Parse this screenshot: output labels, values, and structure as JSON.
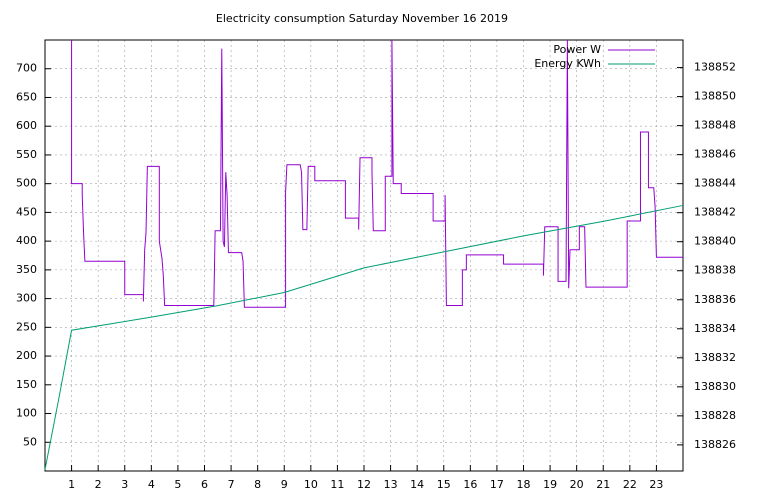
{
  "chart_data": {
    "type": "line",
    "title": "Electricity consumption Saturday November 16 2019",
    "xlim": [
      0,
      24
    ],
    "xticks": [
      1,
      2,
      3,
      4,
      5,
      6,
      7,
      8,
      9,
      10,
      11,
      12,
      13,
      14,
      15,
      16,
      17,
      18,
      19,
      20,
      21,
      22,
      23
    ],
    "ylim": [
      0,
      750
    ],
    "yticks": [
      50,
      100,
      150,
      200,
      250,
      300,
      350,
      400,
      450,
      500,
      550,
      600,
      650,
      700
    ],
    "y2lim": [
      138824.2,
      138853.9
    ],
    "y2ticks": [
      138826,
      138828,
      138830,
      138832,
      138834,
      138836,
      138838,
      138840,
      138842,
      138844,
      138846,
      138848,
      138850,
      138852
    ],
    "grid": true,
    "legend": "top right",
    "series": [
      {
        "name": "Power W",
        "color": "#9400d3",
        "x": [
          1,
          1,
          1.4,
          1.4,
          1.45,
          1.5,
          3.0,
          3.0,
          3.7,
          3.7,
          3.75,
          3.8,
          3.85,
          4.3,
          4.3,
          4.4,
          4.45,
          4.5,
          6.35,
          6.4,
          6.6,
          6.65,
          6.7,
          6.75,
          6.8,
          6.85,
          6.9,
          7.4,
          7.45,
          7.5,
          9.05,
          9.05,
          9.1,
          9.6,
          9.65,
          9.7,
          9.85,
          9.9,
          10.15,
          10.15,
          11.3,
          11.3,
          11.8,
          11.8,
          11.85,
          12.3,
          12.3,
          12.35,
          12.8,
          12.8,
          13.05,
          13.05,
          13.1,
          13.4,
          13.4,
          14.6,
          14.6,
          15.05,
          15.05,
          15.1,
          15.7,
          15.7,
          15.85,
          15.85,
          17.25,
          17.25,
          18.75,
          18.75,
          18.8,
          19.3,
          19.3,
          19.6,
          19.65,
          19.7,
          19.75,
          20.1,
          20.1,
          20.3,
          20.35,
          21.9,
          21.9,
          22.4,
          22.4,
          22.7,
          22.7,
          22.9,
          22.95,
          23.0,
          24
        ],
        "values": [
          750,
          500,
          500,
          480,
          415,
          365,
          365,
          307,
          307,
          295,
          385,
          415,
          530,
          530,
          400,
          370,
          340,
          288,
          288,
          418,
          418,
          735,
          400,
          390,
          520,
          480,
          380,
          380,
          365,
          285,
          285,
          485,
          533,
          533,
          520,
          420,
          420,
          530,
          530,
          505,
          505,
          440,
          440,
          420,
          545,
          545,
          520,
          418,
          418,
          513,
          513,
          750,
          500,
          500,
          483,
          483,
          435,
          435,
          480,
          288,
          288,
          350,
          350,
          376,
          376,
          360,
          360,
          340,
          425,
          425,
          330,
          330,
          750,
          318,
          385,
          385,
          425,
          425,
          320,
          320,
          435,
          435,
          590,
          590,
          493,
          493,
          460,
          372,
          372
        ]
      },
      {
        "name": "Energy KWh",
        "color": "#009e73",
        "axis": "y2",
        "x": [
          0,
          0.5,
          1,
          4,
          6.5,
          9,
          12,
          15,
          18,
          21,
          24
        ],
        "values": [
          138824.3,
          138829,
          138833.9,
          138834.8,
          138835.6,
          138836.5,
          138838.2,
          138839.3,
          138840.4,
          138841.4,
          138842.5
        ]
      }
    ]
  }
}
